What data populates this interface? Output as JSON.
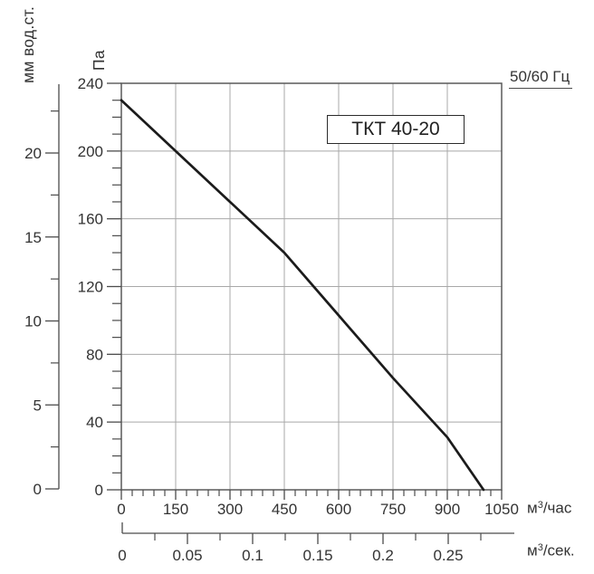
{
  "chart_data": {
    "type": "line",
    "title": "ТКТ 40-20",
    "annotation": "50/60 Гц",
    "grid": true,
    "x_axis": {
      "unit_base": "м",
      "unit_sup": "3",
      "unit_rest": "/час",
      "min": 0,
      "max": 1050,
      "major_tick_step": 150,
      "minor_tick_step": 30,
      "tick_values": [
        0,
        150,
        300,
        450,
        600,
        750,
        900,
        1050
      ],
      "tick_labels": [
        "0",
        "150",
        "300",
        "450",
        "600",
        "750",
        "900",
        "1050"
      ]
    },
    "x2_axis": {
      "unit_base": "м",
      "unit_sup": "3",
      "unit_rest": "/сек.",
      "min": 0,
      "max": 0.3,
      "major_tick_step": 0.05,
      "minor_tick_step": 0.025,
      "tick_values": [
        0,
        0.05,
        0.1,
        0.15,
        0.2,
        0.25
      ],
      "tick_labels": [
        "0",
        "0.05",
        "0.1",
        "0.15",
        "0.2",
        "0.25"
      ]
    },
    "y_axis": {
      "label": "Па",
      "min": 0,
      "max": 240,
      "major_tick_step": 40,
      "minor_tick_step": 10,
      "tick_values": [
        240,
        200,
        160,
        120,
        80,
        40,
        0
      ],
      "tick_labels": [
        "240",
        "200",
        "160",
        "120",
        "80",
        "40",
        "0"
      ]
    },
    "y2_axis": {
      "label": "мм вод.ст.",
      "min": 0,
      "max": 24,
      "major_tick_step": 5,
      "minor_tick_step": 2.5,
      "tick_values": [
        20,
        15,
        10,
        5,
        0
      ],
      "tick_labels": [
        "20",
        "15",
        "10",
        "5",
        "0"
      ]
    },
    "series": [
      {
        "name": "ТКТ 40-20",
        "points": [
          [
            0,
            230
          ],
          [
            150,
            200
          ],
          [
            300,
            170
          ],
          [
            450,
            140
          ],
          [
            600,
            103
          ],
          [
            750,
            66
          ],
          [
            900,
            31
          ],
          [
            1000,
            0
          ]
        ]
      }
    ],
    "colors": {
      "curve": "#1b1b1b",
      "grid": "#a8a8a8",
      "axis": "#4c4c4c",
      "border": "#5a5a5a",
      "text": "#333333"
    }
  }
}
